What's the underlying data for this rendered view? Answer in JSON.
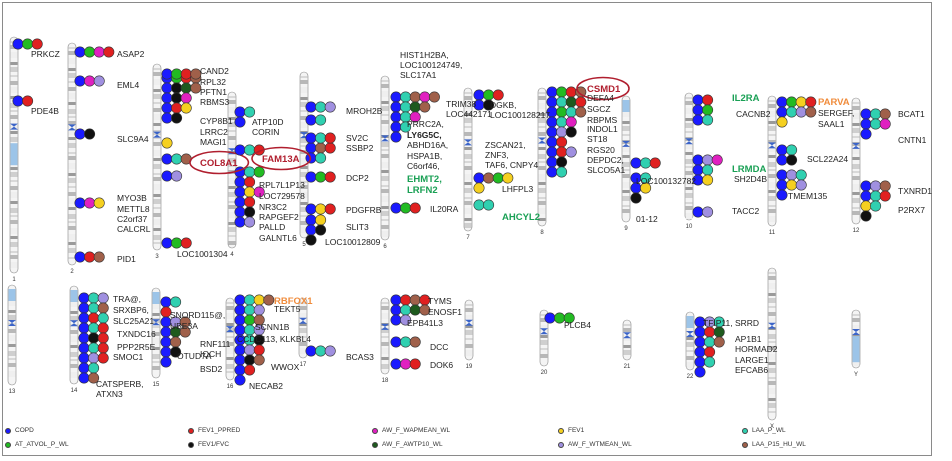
{
  "colors": {
    "copd": "#1a1aff",
    "at_atvol": "#22bb22",
    "fev1_ppred": "#e02020",
    "fev1_fvc": "#111111",
    "aw_f_wapmean": "#e020c0",
    "aw_f_awtp10": "#1e5a1e",
    "fev1": "#f5d020",
    "aw_f_wtmean": "#a090e0",
    "laa_p": "#30d0b0",
    "laa_p15_hu": "#a0604a"
  },
  "legend": [
    {
      "key": "copd",
      "label": "COPD"
    },
    {
      "key": "at_atvol",
      "label": "AT_ATVOL_P_WL"
    },
    {
      "key": "fev1_ppred",
      "label": "FEV1_PPRED"
    },
    {
      "key": "fev1_fvc",
      "label": "FEV1/FVC"
    },
    {
      "key": "aw_f_wapmean",
      "label": "AW_F_WAPMEAN_WL"
    },
    {
      "key": "aw_f_awtp10",
      "label": "AW_F_AWTP10_WL"
    },
    {
      "key": "fev1",
      "label": "FEV1"
    },
    {
      "key": "aw_f_wtmean",
      "label": "AW_F_WTMEAN_WL"
    },
    {
      "key": "laa_p",
      "label": "LAA_P_WL"
    },
    {
      "key": "laa_p15_hu",
      "label": "LAA_P15_HU_WL"
    }
  ],
  "chromosomes": [
    {
      "num": "1",
      "genes": [
        {
          "text": "PRKCZ",
          "dots": [
            "copd",
            "at_atvol",
            "fev1_ppred"
          ]
        },
        {
          "text": "PDE4B",
          "dots": [
            "copd",
            "fev1_ppred"
          ]
        }
      ]
    },
    {
      "num": "2",
      "genes": [
        {
          "text": "ASAP2",
          "dots": [
            "copd",
            "at_atvol",
            "aw_f_wapmean",
            "fev1_ppred"
          ]
        },
        {
          "text": "EML4",
          "dots": [
            "copd",
            "aw_f_wapmean",
            "aw_f_wtmean"
          ]
        },
        {
          "text": "SLC9A4",
          "dots": [
            "copd",
            "fev1_fvc"
          ]
        },
        {
          "text": "MYO3B",
          "dots": [
            "copd",
            "aw_f_wapmean",
            "fev1"
          ]
        },
        {
          "text": "METTL8",
          "dots": []
        },
        {
          "text": "C2orf37",
          "dots": []
        },
        {
          "text": "CALCRL",
          "dots": []
        },
        {
          "text": "PID1",
          "dots": [
            "copd",
            "fev1_ppred",
            "laa_p15_hu"
          ]
        }
      ]
    },
    {
      "num": "3",
      "genes": [
        {
          "text": "CAND2",
          "dots": [
            "copd",
            "at_atvol",
            "fev1_ppred",
            "laa_p15_hu"
          ]
        },
        {
          "text": "RPL32",
          "dots": []
        },
        {
          "text": "PFTN1",
          "dots": []
        },
        {
          "text": "RBMS3",
          "dots": []
        },
        {
          "text": "CYP8B1",
          "dots": []
        },
        {
          "text": "LRRC2",
          "dots": []
        },
        {
          "text": "MAGI1",
          "dots": []
        },
        {
          "text": "COL8A1",
          "dots": [
            "copd",
            "laa_p",
            "laa_p15_hu"
          ],
          "style": "red",
          "circled": true
        },
        {
          "text": "LOC1001304",
          "dots": [
            "copd",
            "at_atvol",
            "fev1_ppred"
          ]
        }
      ]
    },
    {
      "num": "4",
      "genes": [
        {
          "text": "ATP10D",
          "dots": []
        },
        {
          "text": "CORIN",
          "dots": []
        },
        {
          "text": "FAM13A",
          "dots": [
            "copd",
            "laa_p",
            "fev1_ppred"
          ],
          "style": "red",
          "circled": true
        },
        {
          "text": "RPL7L1P13",
          "dots": []
        },
        {
          "text": "LOC729578",
          "dots": []
        },
        {
          "text": "NR3C2",
          "dots": []
        },
        {
          "text": "RAPGEF2",
          "dots": []
        },
        {
          "text": "PALLD",
          "dots": []
        },
        {
          "text": "GALNTL6",
          "dots": []
        }
      ]
    },
    {
      "num": "5",
      "genes": [
        {
          "text": "MROH2B",
          "dots": [
            "copd",
            "laa_p",
            "aw_f_wtmean"
          ]
        },
        {
          "text": "SV2C",
          "dots": [
            "copd",
            "laa_p",
            "fev1_ppred"
          ]
        },
        {
          "text": "SSBP2",
          "dots": []
        },
        {
          "text": "DCP2",
          "dots": [
            "copd",
            "at_atvol",
            "fev1_ppred"
          ]
        },
        {
          "text": "PDGFRB",
          "dots": [
            "copd",
            "fev1",
            "fev1_ppred"
          ]
        },
        {
          "text": "SLIT3",
          "dots": []
        },
        {
          "text": "LOC10012809",
          "dots": []
        }
      ]
    },
    {
      "num": "6",
      "genes": [
        {
          "text": "HIST1H2BA,",
          "dots": []
        },
        {
          "text": "LOC100124749,",
          "dots": []
        },
        {
          "text": "SLC17A1",
          "dots": []
        },
        {
          "text": "TRIM38",
          "dots": []
        },
        {
          "text": "LOC442171",
          "dots": []
        },
        {
          "text": "PRRC2A,",
          "dots": []
        },
        {
          "text": "LY6G5C,",
          "dots": [],
          "style": "blue"
        },
        {
          "text": "ABHD16A,",
          "dots": []
        },
        {
          "text": "HSPA1B,",
          "dots": []
        },
        {
          "text": "C6orf46,",
          "dots": []
        },
        {
          "text": "EHMT2,",
          "dots": [],
          "style": "green"
        },
        {
          "text": "LRFN2",
          "dots": [],
          "style": "green"
        },
        {
          "text": "IL20RA",
          "dots": [
            "copd",
            "at_atvol",
            "fev1_ppred"
          ]
        }
      ]
    },
    {
      "num": "7",
      "genes": [
        {
          "text": "DGKB,",
          "dots": []
        },
        {
          "text": "LOC100128217",
          "dots": []
        },
        {
          "text": "ZSCAN21,",
          "dots": []
        },
        {
          "text": "ZNF3,",
          "dots": []
        },
        {
          "text": "TAF6, CNPY4",
          "dots": []
        },
        {
          "text": "LHFPL3",
          "dots": []
        },
        {
          "text": "AHCYL2",
          "dots": [],
          "style": "green"
        }
      ]
    },
    {
      "num": "8",
      "genes": [
        {
          "text": "CSMD1",
          "dots": [],
          "style": "red",
          "circled": true
        },
        {
          "text": "DEFA4",
          "dots": []
        },
        {
          "text": "SGCZ",
          "dots": []
        },
        {
          "text": "RBPMS",
          "dots": []
        },
        {
          "text": "INDOL1",
          "dots": []
        },
        {
          "text": "ST18",
          "dots": []
        },
        {
          "text": "RGS20",
          "dots": []
        },
        {
          "text": "DEPDC2,",
          "dots": []
        },
        {
          "text": "SLCO5A1",
          "dots": []
        }
      ]
    },
    {
      "num": "9",
      "genes": [
        {
          "text": "LOC100132782",
          "dots": [
            "copd",
            "laa_p",
            "fev1_ppred"
          ]
        },
        {
          "text": "01-12",
          "dots": []
        }
      ]
    },
    {
      "num": "10",
      "genes": [
        {
          "text": "IL2RA",
          "dots": [],
          "style": "green"
        },
        {
          "text": "CACNB2",
          "dots": []
        },
        {
          "text": "LRMDA",
          "dots": [],
          "style": "green"
        },
        {
          "text": "SH2D4B",
          "dots": []
        },
        {
          "text": "TACC2",
          "dots": [
            "copd",
            "aw_f_wtmean"
          ]
        }
      ]
    },
    {
      "num": "11",
      "genes": [
        {
          "text": "PARVA",
          "dots": [],
          "style": "orange"
        },
        {
          "text": "SERGEF,",
          "dots": []
        },
        {
          "text": "SAAL1",
          "dots": []
        },
        {
          "text": "SCL22A24",
          "dots": []
        },
        {
          "text": "TMEM135",
          "dots": []
        }
      ]
    },
    {
      "num": "12",
      "genes": [
        {
          "text": "BCAT1",
          "dots": []
        },
        {
          "text": "CNTN1",
          "dots": []
        },
        {
          "text": "TXNRD1",
          "dots": []
        },
        {
          "text": "P2RX7",
          "dots": []
        }
      ]
    },
    {
      "num": "13",
      "genes": []
    },
    {
      "num": "14",
      "genes": [
        {
          "text": "TRA@,",
          "dots": []
        },
        {
          "text": "SRXBP6,",
          "dots": []
        },
        {
          "text": "SLC25A21",
          "dots": []
        },
        {
          "text": "TXNDC16",
          "dots": []
        },
        {
          "text": "PPP2R5E",
          "dots": []
        },
        {
          "text": "SMOC1",
          "dots": []
        },
        {
          "text": "CATSPERB,",
          "dots": []
        },
        {
          "text": "ATXN3",
          "dots": []
        }
      ]
    },
    {
      "num": "15",
      "genes": [
        {
          "text": "SNORD115@,",
          "dots": []
        },
        {
          "text": "UBE3A",
          "dots": []
        },
        {
          "text": "OTUD7A",
          "dots": []
        },
        {
          "text": "RNF111",
          "dots": []
        },
        {
          "text": "IQCH",
          "dots": []
        },
        {
          "text": "BSD2",
          "dots": []
        }
      ]
    },
    {
      "num": "16",
      "genes": [
        {
          "text": "RBFOX1",
          "dots": [],
          "style": "orange"
        },
        {
          "text": "TEKT5",
          "dots": []
        },
        {
          "text": "SCNN1B",
          "dots": []
        },
        {
          "text": "CCDC113, KLKBL4",
          "dots": []
        },
        {
          "text": "WWOX",
          "dots": []
        },
        {
          "text": "NECAB2",
          "dots": []
        }
      ]
    },
    {
      "num": "17",
      "genes": [
        {
          "text": "BCAS3",
          "dots": [
            "copd",
            "laa_p",
            "aw_f_wtmean"
          ]
        }
      ]
    },
    {
      "num": "18",
      "genes": [
        {
          "text": "TYMS",
          "dots": []
        },
        {
          "text": "ENOSF1",
          "dots": []
        },
        {
          "text": "EPB41L3",
          "dots": []
        },
        {
          "text": "DCC",
          "dots": [
            "copd",
            "laa_p",
            "laa_p15_hu"
          ]
        },
        {
          "text": "DOK6",
          "dots": [
            "copd",
            "aw_f_wapmean",
            "fev1_ppred"
          ]
        }
      ]
    },
    {
      "num": "19",
      "genes": []
    },
    {
      "num": "20",
      "genes": [
        {
          "text": "PLCB4",
          "dots": [
            "copd",
            "at_atvol",
            "at_atvol"
          ]
        }
      ]
    },
    {
      "num": "21",
      "genes": []
    },
    {
      "num": "22",
      "genes": [
        {
          "text": "TFIP11, SRRD",
          "dots": []
        },
        {
          "text": "AP1B1",
          "dots": []
        },
        {
          "text": "HORMAD2",
          "dots": []
        },
        {
          "text": "LARGE1",
          "dots": []
        },
        {
          "text": "EFCAB6",
          "dots": []
        }
      ]
    },
    {
      "num": "X",
      "genes": []
    },
    {
      "num": "Y",
      "genes": []
    }
  ]
}
